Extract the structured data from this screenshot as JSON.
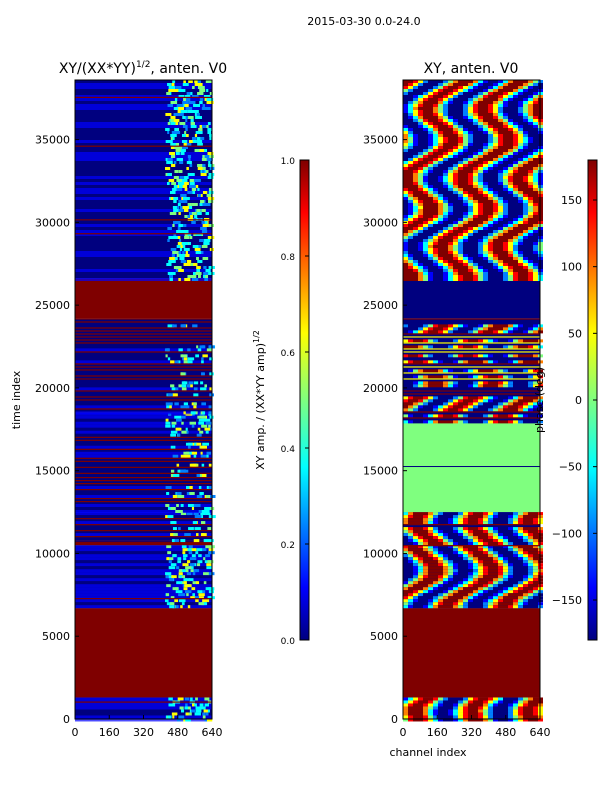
{
  "suptitle": "2015-03-30 0.0-24.0",
  "colors": {
    "jet": [
      "#00007f",
      "#0000ff",
      "#007fff",
      "#00ffff",
      "#7fff7f",
      "#ffff00",
      "#ff7f00",
      "#ff0000",
      "#7f0000"
    ],
    "frame": "#000000",
    "background": "#ffffff"
  },
  "chart_data": [
    {
      "type": "heatmap",
      "title": "XY/(XX*YY)",
      "title_exp": "1/2",
      "title_tail": ", anten. V0",
      "xlabel": "",
      "ylabel": "time index",
      "xlim": [
        0,
        640
      ],
      "ylim": [
        0,
        38600
      ],
      "x_ticks": [
        0,
        160,
        320,
        480,
        640
      ],
      "y_ticks": [
        0,
        5000,
        10000,
        15000,
        20000,
        25000,
        30000,
        35000
      ],
      "colorbar": {
        "label": "XY amp. / (XX*YY amp)",
        "label_exp": "1/2",
        "range": [
          0.0,
          1.0
        ],
        "ticks": [
          "0.0",
          "0.2",
          "0.4",
          "0.6",
          "0.8",
          "1.0"
        ]
      },
      "segments": [
        {
          "from": 0,
          "to": 1300,
          "kind": "data"
        },
        {
          "from": 1300,
          "to": 6700,
          "kind": "flag"
        },
        {
          "from": 6700,
          "to": 10500,
          "kind": "data"
        },
        {
          "from": 10500,
          "to": 10800,
          "kind": "flag"
        },
        {
          "from": 10800,
          "to": 12500,
          "kind": "striped"
        },
        {
          "from": 12500,
          "to": 14800,
          "kind": "striped"
        },
        {
          "from": 14800,
          "to": 18500,
          "kind": "striped"
        },
        {
          "from": 18500,
          "to": 24200,
          "kind": "striped"
        },
        {
          "from": 24200,
          "to": 26600,
          "kind": "flag"
        },
        {
          "from": 26600,
          "to": 38600,
          "kind": "data"
        }
      ]
    },
    {
      "type": "heatmap",
      "title": "XY, anten. V0",
      "xlabel": "channel index",
      "ylabel": "",
      "xlim": [
        0,
        640
      ],
      "ylim": [
        0,
        38600
      ],
      "x_ticks": [
        0,
        160,
        320,
        480,
        640
      ],
      "y_ticks": [
        0,
        5000,
        10000,
        15000,
        20000,
        25000,
        30000,
        35000
      ],
      "colorbar": {
        "label": "phase (deg)",
        "range": [
          -180,
          180
        ],
        "ticks": [
          "−150",
          "−100",
          "−50",
          "0",
          "50",
          "100",
          "150"
        ]
      },
      "segments": [
        {
          "from": 0,
          "to": 1300,
          "kind": "data"
        },
        {
          "from": 1300,
          "to": 6700,
          "kind": "flag"
        },
        {
          "from": 6700,
          "to": 10500,
          "kind": "data"
        },
        {
          "from": 10500,
          "to": 12500,
          "kind": "striped"
        },
        {
          "from": 12500,
          "to": 18000,
          "kind": "zero"
        },
        {
          "from": 18000,
          "to": 24200,
          "kind": "striped"
        },
        {
          "from": 24200,
          "to": 26600,
          "kind": "low"
        },
        {
          "from": 26600,
          "to": 38600,
          "kind": "data"
        }
      ]
    }
  ]
}
